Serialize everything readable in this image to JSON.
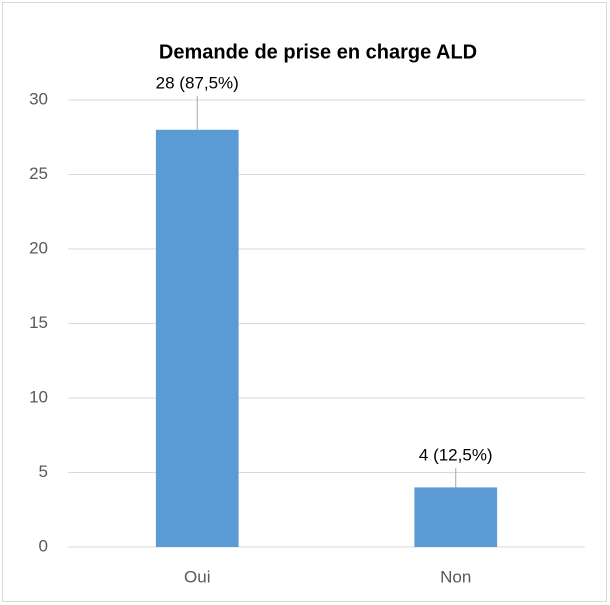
{
  "chart_data": {
    "type": "bar",
    "title": "Demande de prise en charge ALD",
    "categories": [
      "Oui",
      "Non"
    ],
    "values": [
      28,
      4
    ],
    "value_labels": [
      "28 (87,5%)",
      "4 (12,5%)"
    ],
    "color": "#5b9bd5",
    "ylim": [
      0,
      30
    ],
    "yticks": [
      0,
      5,
      10,
      15,
      20,
      25,
      30
    ],
    "grid": true
  }
}
